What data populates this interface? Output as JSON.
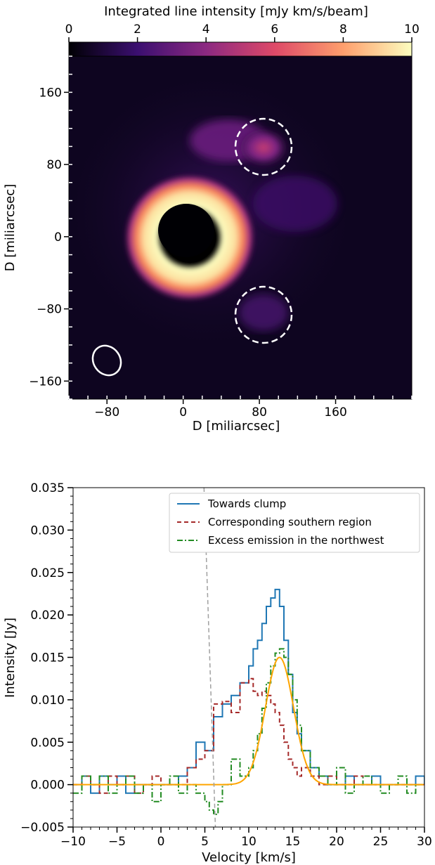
{
  "chart_data": [
    {
      "type": "heatmap",
      "colorbar": {
        "label": "Integrated line intensity [mJy km/s/beam]",
        "ticks": [
          0,
          2,
          4,
          6,
          8,
          10
        ],
        "range": [
          0,
          10
        ],
        "colormap": "magma",
        "stops": [
          "#000004",
          "#3b0f70",
          "#8c2981",
          "#de4968",
          "#fe9f6d",
          "#fcfdbf"
        ]
      },
      "xlabel": "D [miliarcsec]",
      "ylabel": "D [miliarcsec]",
      "xlim": [
        -120,
        240
      ],
      "ylim": [
        -180,
        200
      ],
      "xticks": [
        -80,
        0,
        80,
        160
      ],
      "yticks": [
        -160,
        -80,
        0,
        80,
        160
      ],
      "ring": {
        "center": [
          0,
          0
        ],
        "radius_mas": 45,
        "peak_mJy": 10,
        "central_hole_radius_mas": 24
      },
      "circles": [
        {
          "style": "dashed",
          "color": "#ffffff",
          "center": [
            85,
            86
          ],
          "radius": 30
        },
        {
          "style": "dashed",
          "color": "#ffffff",
          "center": [
            85,
            -90
          ],
          "radius": 30
        },
        {
          "style": "solid",
          "color": "#ffffff",
          "center": [
            -80,
            -140
          ],
          "radius": 14,
          "label_role": "beam"
        }
      ],
      "features": [
        {
          "name": "northwest clump",
          "center": [
            85,
            86
          ],
          "value_mJy": 5.5
        },
        {
          "name": "north arc",
          "center": [
            40,
            95
          ],
          "value_mJy": 4.2
        }
      ]
    },
    {
      "type": "line",
      "xlabel": "Velocity [km/s]",
      "ylabel": "Intensity [Jy]",
      "xlim": [
        -10,
        30
      ],
      "ylim": [
        -0.005,
        0.035
      ],
      "xticks": [
        -10,
        -5,
        0,
        5,
        10,
        15,
        20,
        25,
        30
      ],
      "yticks": [
        -0.005,
        0.0,
        0.005,
        0.01,
        0.015,
        0.02,
        0.025,
        0.03,
        0.035
      ],
      "ytick_labels": [
        "−0.005",
        "0.000",
        "0.005",
        "0.010",
        "0.015",
        "0.020",
        "0.025",
        "0.030",
        "0.035"
      ],
      "xtick_labels": [
        "−10",
        "−5",
        "0",
        "5",
        "10",
        "15",
        "20",
        "25",
        "30"
      ],
      "legend": {
        "placement": "top-right"
      },
      "series": [
        {
          "name": "Towards clump",
          "color": "#1f77b4",
          "style": "solid",
          "step": true,
          "x": [
            -10,
            -9,
            -8,
            -7,
            -6,
            -5,
            -4,
            -3,
            -2,
            -1,
            0,
            1,
            2,
            3,
            4,
            5,
            6,
            7,
            8,
            9,
            10,
            10.5,
            11,
            11.5,
            12,
            12.5,
            13,
            13.5,
            14,
            14.5,
            15,
            15.5,
            16,
            17,
            18,
            19,
            20,
            21,
            22,
            23,
            24,
            25,
            26,
            27,
            28,
            29,
            30
          ],
          "y": [
            0.0,
            0.001,
            -0.001,
            0.001,
            0.0,
            0.001,
            -0.001,
            0.0,
            0.0,
            0.0,
            0.0,
            0.0,
            0.001,
            0.002,
            0.005,
            0.004,
            0.008,
            0.0095,
            0.0105,
            0.012,
            0.014,
            0.016,
            0.017,
            0.019,
            0.021,
            0.022,
            0.023,
            0.021,
            0.017,
            0.013,
            0.0085,
            0.006,
            0.004,
            0.002,
            0.001,
            0.0,
            0.0,
            0.001,
            0.0,
            0.0,
            0.001,
            0.0,
            0.0,
            0.0,
            0.0,
            0.001,
            0.0
          ]
        },
        {
          "name": "Corresponding southern region",
          "color": "#a52a2a",
          "style": "dashed",
          "step": true,
          "x": [
            -10,
            -9,
            -8,
            -7,
            -6,
            -5,
            -4,
            -3,
            -2,
            -1,
            0,
            1,
            2,
            3,
            4,
            5,
            6,
            7,
            8,
            9,
            10,
            10.5,
            11,
            11.5,
            12,
            12.5,
            13,
            13.5,
            14,
            14.5,
            15,
            15.5,
            16,
            17,
            18,
            19,
            20,
            21,
            22,
            23,
            24,
            25,
            26,
            27,
            28,
            29,
            30
          ],
          "y": [
            0.0,
            0.001,
            0.0,
            -0.001,
            0.001,
            0.0,
            0.001,
            -0.001,
            0.0,
            0.001,
            0.0,
            0.0,
            0.0,
            0.002,
            0.003,
            0.004,
            0.0095,
            0.0098,
            0.0085,
            0.012,
            0.0125,
            0.011,
            0.0105,
            0.011,
            0.0105,
            0.0095,
            0.0085,
            0.007,
            0.005,
            0.003,
            0.002,
            0.001,
            0.002,
            0.001,
            0.0,
            0.001,
            0.0,
            0.0,
            0.001,
            0.0,
            0.0,
            0.0,
            0.0,
            0.0,
            0.0,
            0.0,
            0.0
          ]
        },
        {
          "name": "Excess emission in the northwest",
          "color": "#228b22",
          "style": "dashdot",
          "step": true,
          "x": [
            -10,
            -9,
            -8,
            -7,
            -6,
            -5,
            -4,
            -3,
            -2,
            -1,
            0,
            1,
            2,
            3,
            4,
            5,
            5.5,
            6,
            6.5,
            7,
            8,
            9,
            10,
            10.5,
            11,
            11.5,
            12,
            12.5,
            13,
            13.5,
            14,
            14.5,
            15,
            15.5,
            16,
            17,
            18,
            19,
            20,
            21,
            22,
            23,
            24,
            25,
            26,
            27,
            28,
            29,
            30
          ],
          "y": [
            -0.001,
            0.001,
            0.0,
            0.001,
            -0.001,
            0.0,
            0.001,
            -0.001,
            0.0,
            -0.002,
            0.0,
            0.001,
            -0.001,
            0.0,
            -0.001,
            -0.002,
            -0.003,
            -0.0035,
            -0.002,
            0.0,
            0.003,
            0.001,
            0.002,
            0.004,
            0.006,
            0.009,
            0.012,
            0.014,
            0.0155,
            0.016,
            0.015,
            0.013,
            0.01,
            0.007,
            0.004,
            0.002,
            0.001,
            0.0,
            0.002,
            -0.001,
            0.0,
            0.001,
            0.0,
            -0.001,
            0.0,
            0.001,
            -0.001,
            0.0,
            0.0
          ]
        },
        {
          "name": "",
          "color": "#ffa500",
          "style": "solid",
          "step": false,
          "gaussian": {
            "amplitude": 0.015,
            "center": 13.5,
            "sigma": 1.6
          }
        },
        {
          "name": "",
          "color": "#a0a0a0",
          "style": "dashed",
          "step": false,
          "x": [
            4.9,
            6.2
          ],
          "y": [
            0.035,
            -0.005
          ]
        }
      ]
    }
  ]
}
